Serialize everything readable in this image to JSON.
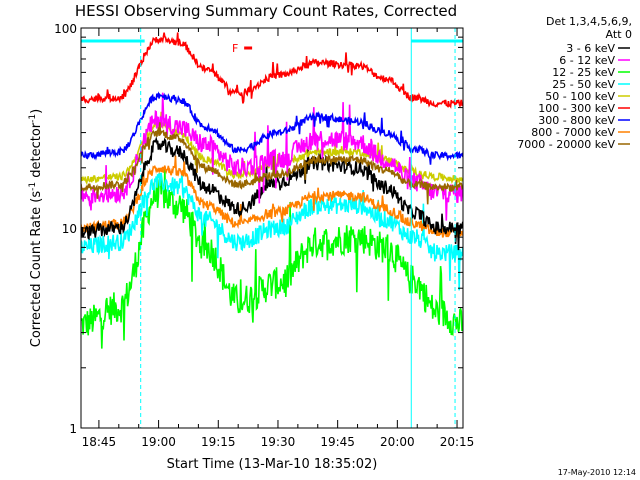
{
  "chart_data": {
    "type": "line",
    "title": "HESSI Observing Summary Count Rates, Corrected",
    "xlabel": "Start Time (13-Mar-10 18:35:02)",
    "ylabel_main": "Corrected Count Rate (s",
    "ylabel_sup1": "-1",
    "ylabel_mid": " detector",
    "ylabel_sup2": "-1",
    "ylabel_end": ")",
    "y_scale": "log",
    "ylim": [
      1,
      100
    ],
    "y_tick_labels": [
      "1",
      "10",
      "100"
    ],
    "x_unit": "minutes after 18:30",
    "xlim": [
      10.5,
      106.5
    ],
    "x_tick_labels": [
      "18:45",
      "19:00",
      "19:15",
      "19:30",
      "19:45",
      "20:00",
      "20:15"
    ],
    "x_tick_values": [
      15,
      30,
      45,
      60,
      75,
      90,
      105
    ],
    "legend_header": [
      "Det 1,3,4,5,6,9,",
      "Att 0"
    ],
    "legend_placement": "right",
    "flare_flag": "F",
    "flag_bars": [
      {
        "name": "night",
        "color": "#00ffff",
        "x_start": 10.5,
        "x_end": 26.5
      },
      {
        "name": "night",
        "color": "#00ffff",
        "x_start": 93.5,
        "x_end": 106.5
      },
      {
        "name": "flare",
        "color": "#ff0000",
        "x_start": 51.5,
        "x_end": 53.5
      }
    ],
    "vertical_markers": [
      {
        "x": 25.5,
        "style": "dashed",
        "color": "#00ffff"
      },
      {
        "x": 93.5,
        "style": "solid",
        "color": "#00ffff"
      },
      {
        "x": 104.5,
        "style": "dashed",
        "color": "#00ffff"
      }
    ],
    "key_times": [
      10.5,
      20,
      30,
      35,
      42,
      50,
      60,
      70,
      80,
      87,
      94,
      100,
      106.5
    ],
    "series": [
      {
        "name": "3 - 6 keV",
        "color": "#000000",
        "noise": 0.035,
        "values": [
          9.5,
          10.0,
          26.0,
          24.0,
          16.0,
          12.5,
          17.0,
          21.0,
          20.0,
          16.0,
          12.0,
          10.0,
          10.0
        ]
      },
      {
        "name": "6 - 12 keV",
        "color": "#ff00ff",
        "noise": 0.05,
        "values": [
          14.5,
          15.0,
          35.0,
          32.0,
          26.0,
          20.0,
          22.0,
          28.0,
          27.0,
          22.0,
          17.0,
          15.0,
          15.0
        ]
      },
      {
        "name": "12 - 25 keV",
        "color": "#00ff00",
        "noise": 0.08,
        "values": [
          3.3,
          4.0,
          15.0,
          13.0,
          8.0,
          4.3,
          5.3,
          8.5,
          9.0,
          8.0,
          5.5,
          3.8,
          3.3
        ]
      },
      {
        "name": "25 - 50 keV",
        "color": "#00ffff",
        "noise": 0.045,
        "values": [
          8.0,
          8.5,
          17.0,
          16.0,
          11.0,
          8.5,
          10.0,
          13.0,
          13.0,
          11.0,
          9.0,
          7.5,
          7.5
        ]
      },
      {
        "name": "50 - 100 keV",
        "color": "#cccc00",
        "noise": 0.018,
        "values": [
          17.5,
          18.0,
          33.0,
          30.0,
          22.0,
          18.5,
          21.0,
          24.0,
          24.0,
          22.0,
          19.0,
          18.0,
          17.5
        ]
      },
      {
        "name": "100 - 300 keV",
        "color": "#ff0000",
        "noise": 0.018,
        "values": [
          44.0,
          45.0,
          88.0,
          85.0,
          62.0,
          47.0,
          58.0,
          67.0,
          65.0,
          56.0,
          45.0,
          42.0,
          42.0
        ]
      },
      {
        "name": "300 - 800 keV",
        "color": "#0000ff",
        "noise": 0.018,
        "values": [
          23.0,
          24.0,
          46.0,
          44.0,
          32.0,
          24.5,
          30.0,
          36.0,
          34.0,
          30.0,
          25.0,
          23.0,
          23.0
        ]
      },
      {
        "name": "800 - 7000 keV",
        "color": "#ff8000",
        "noise": 0.025,
        "values": [
          10.0,
          10.5,
          20.0,
          19.0,
          13.0,
          10.5,
          12.0,
          14.5,
          14.5,
          12.5,
          10.5,
          9.5,
          9.5
        ]
      },
      {
        "name": "7000 - 20000 keV",
        "color": "#996600",
        "noise": 0.02,
        "values": [
          16.0,
          16.5,
          30.0,
          28.0,
          20.0,
          16.5,
          18.5,
          22.0,
          22.0,
          19.5,
          16.5,
          16.0,
          16.0
        ]
      }
    ]
  },
  "footer_date": "17-May-2010 12:14"
}
